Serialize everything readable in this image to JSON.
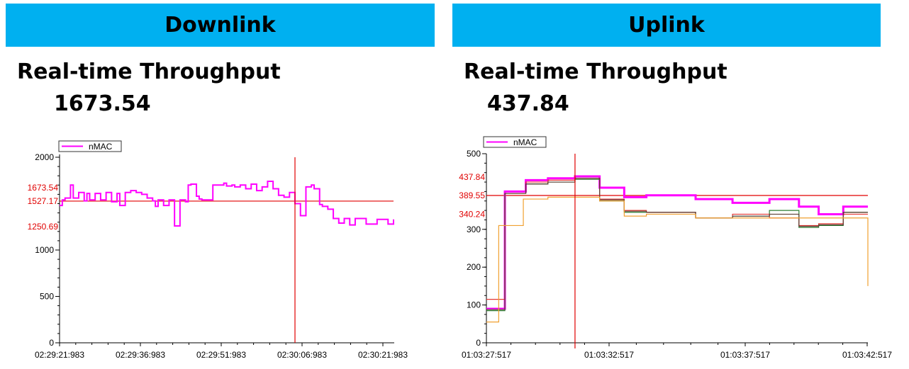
{
  "panels": {
    "downlink": {
      "title": "Downlink",
      "heading": "Real-time Throughput",
      "value": "1673.54"
    },
    "uplink": {
      "title": "Uplink",
      "heading": "Real-time Throughput",
      "value": "437.84"
    }
  },
  "colors": {
    "banner": "#00b0f0",
    "nmac": "#ff00ff",
    "ref_line": "#e00000"
  },
  "chart_data": [
    {
      "type": "line",
      "title": "",
      "legend": [
        "nMAC"
      ],
      "legend_position": "top-left",
      "ylim": [
        0,
        2000
      ],
      "y_ticks": [
        0,
        500,
        1000,
        2000
      ],
      "reference_labels": [
        "1673.54",
        "1527.17",
        "1250.69"
      ],
      "reference_values": [
        1673.54,
        1527.17,
        1250.69
      ],
      "horizontal_line": 1527.17,
      "x_tick_labels": [
        "02:29:21:983",
        "02:29:36:983",
        "02:29:51:983",
        "02:30:06:983",
        "02:30:21:983"
      ],
      "x_range_seconds": [
        0,
        61
      ],
      "cursor_x_seconds": 43,
      "series": [
        {
          "name": "nMAC",
          "color": "#ff00ff",
          "x": [
            0,
            0.5,
            1,
            2,
            2.5,
            3.5,
            4.5,
            5,
            5.5,
            6.5,
            7.5,
            8.5,
            9.5,
            10.5,
            11,
            12,
            13,
            14,
            15,
            16,
            17,
            17.5,
            18,
            19,
            20,
            21,
            21.5,
            22,
            23,
            23.5,
            24,
            25,
            25.5,
            26,
            27.5,
            28,
            30,
            30.5,
            31.5,
            32,
            33,
            34,
            35,
            36,
            37,
            38,
            39,
            40,
            41,
            42,
            43,
            44,
            45,
            46,
            46.5,
            47,
            47.5,
            48,
            49,
            50,
            51,
            52,
            53,
            54,
            55,
            56,
            57,
            58,
            59,
            60,
            61
          ],
          "y": [
            1480,
            1540,
            1560,
            1700,
            1560,
            1620,
            1530,
            1610,
            1540,
            1610,
            1540,
            1620,
            1520,
            1610,
            1480,
            1620,
            1640,
            1620,
            1600,
            1560,
            1530,
            1470,
            1540,
            1480,
            1540,
            1260,
            1260,
            1540,
            1520,
            1700,
            1710,
            1580,
            1550,
            1540,
            1540,
            1700,
            1720,
            1690,
            1700,
            1680,
            1700,
            1660,
            1710,
            1640,
            1680,
            1740,
            1660,
            1590,
            1570,
            1620,
            1500,
            1370,
            1680,
            1700,
            1660,
            1660,
            1490,
            1470,
            1440,
            1340,
            1290,
            1340,
            1270,
            1340,
            1340,
            1280,
            1280,
            1330,
            1330,
            1280,
            1330
          ]
        }
      ]
    },
    {
      "type": "line",
      "title": "",
      "legend": [
        "nMAC"
      ],
      "legend_position": "top-left",
      "ylim": [
        0,
        500
      ],
      "y_ticks": [
        0,
        100,
        200,
        300,
        500
      ],
      "reference_labels": [
        "437.84",
        "389.55",
        "340.24"
      ],
      "reference_values": [
        437.84,
        389.55,
        340.24
      ],
      "horizontal_line": 389.55,
      "x_tick_labels": [
        "01:03:27:517",
        "01:03:32:517",
        "01:03:37:517",
        "01:03:42:517"
      ],
      "x_range_seconds": [
        0,
        15.5
      ],
      "cursor_x_seconds": 3.6,
      "series": [
        {
          "name": "nMAC",
          "color": "#ff00ff",
          "width": 3,
          "x": [
            0,
            0.65,
            0.75,
            1.6,
            2.5,
            3.6,
            4.6,
            5.6,
            6.5,
            8.5,
            10,
            11.5,
            12.7,
            13.5,
            14.5,
            15.5
          ],
          "y": [
            90,
            90,
            400,
            430,
            435,
            440,
            410,
            385,
            390,
            380,
            370,
            380,
            360,
            340,
            360,
            360
          ]
        },
        {
          "name": "",
          "color": "#2e7d32",
          "x": [
            0,
            0.65,
            0.75,
            1.6,
            2.5,
            3.6,
            4.6,
            5.6,
            6.5,
            8.5,
            10,
            11.5,
            12.7,
            13.5,
            14.5,
            15.5
          ],
          "y": [
            85,
            85,
            395,
            420,
            425,
            432,
            375,
            345,
            345,
            330,
            335,
            350,
            305,
            310,
            345,
            345
          ]
        },
        {
          "name": "",
          "color": "#e53935",
          "x": [
            0,
            0.65,
            0.75,
            1.6,
            2.5,
            3.6,
            4.6,
            5.6,
            6.5,
            8.5,
            10,
            11.5,
            12.7,
            13.5,
            14.5,
            15.5
          ],
          "y": [
            115,
            115,
            395,
            425,
            430,
            435,
            380,
            350,
            345,
            330,
            340,
            330,
            310,
            315,
            340,
            340
          ]
        },
        {
          "name": "",
          "color": "#5d4037",
          "x": [
            0,
            0.65,
            0.75,
            1.6,
            2.5,
            3.6,
            4.6,
            5.6,
            6.5,
            8.5,
            10,
            11.5,
            12.7,
            13.5,
            14.5,
            15.5
          ],
          "y": [
            88,
            88,
            395,
            420,
            425,
            435,
            378,
            348,
            345,
            330,
            335,
            340,
            308,
            312,
            345,
            345
          ]
        },
        {
          "name": "",
          "color": "#f0a030",
          "x": [
            0,
            0.5,
            0.65,
            1.5,
            2.5,
            3.6,
            4.6,
            5.6,
            6.5,
            8.5,
            10,
            11.5,
            12.7,
            13.5,
            14.5,
            15.5
          ],
          "y": [
            55,
            310,
            310,
            380,
            385,
            385,
            375,
            335,
            340,
            330,
            330,
            330,
            330,
            330,
            330,
            150
          ]
        }
      ]
    }
  ]
}
